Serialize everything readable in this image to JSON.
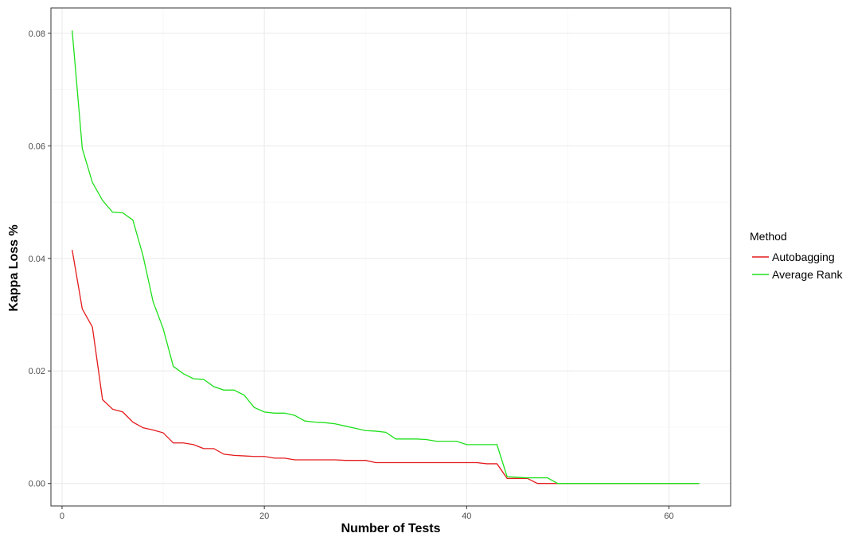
{
  "chart_data": {
    "type": "line",
    "title": "",
    "xlabel": "Number of Tests",
    "ylabel": "Kappa Loss %",
    "xlim": [
      -1.1,
      66.1
    ],
    "ylim": [
      -0.004,
      0.0845
    ],
    "x_ticks": [
      0,
      20,
      40,
      60
    ],
    "x_tick_labels": [
      "0",
      "20",
      "40",
      "60"
    ],
    "y_ticks": [
      0.0,
      0.02,
      0.04,
      0.06,
      0.08
    ],
    "y_tick_labels": [
      "0.00",
      "0.02",
      "0.04",
      "0.06",
      "0.08"
    ],
    "grid": true,
    "legend": {
      "title": "Method",
      "position": "right"
    },
    "series": [
      {
        "name": "Autobagging",
        "color": "#e41a1c",
        "x": [
          1,
          2,
          3,
          4,
          5,
          6,
          7,
          8,
          9,
          10,
          11,
          12,
          13,
          14,
          15,
          16,
          17,
          18,
          19,
          20,
          21,
          22,
          23,
          24,
          25,
          26,
          27,
          28,
          29,
          30,
          31,
          32,
          33,
          34,
          35,
          36,
          37,
          38,
          39,
          40,
          41,
          42,
          43,
          44,
          45,
          46,
          47,
          48,
          49,
          50,
          51,
          52,
          53,
          54,
          55,
          56,
          57,
          58,
          59,
          60,
          61,
          62,
          63
        ],
        "y": [
          0.0415,
          0.031,
          0.0278,
          0.0149,
          0.0132,
          0.0127,
          0.0109,
          0.0099,
          0.0095,
          0.009,
          0.0072,
          0.0072,
          0.0069,
          0.0062,
          0.0062,
          0.0052,
          0.005,
          0.0049,
          0.0048,
          0.0048,
          0.0045,
          0.0045,
          0.0042,
          0.0042,
          0.0042,
          0.0042,
          0.0042,
          0.0041,
          0.0041,
          0.0041,
          0.0037,
          0.0037,
          0.0037,
          0.0037,
          0.0037,
          0.0037,
          0.0037,
          0.0037,
          0.0037,
          0.0037,
          0.0037,
          0.0035,
          0.0035,
          0.0009,
          0.0009,
          0.0009,
          0.0,
          0.0,
          0.0,
          0.0,
          0.0,
          0.0,
          0.0,
          0.0,
          0.0,
          0.0,
          0.0,
          0.0,
          0.0,
          0.0,
          0.0,
          0.0,
          0.0
        ]
      },
      {
        "name": "Average Rank",
        "color": "#1ee01a",
        "x": [
          1,
          2,
          3,
          4,
          5,
          6,
          7,
          8,
          9,
          10,
          11,
          12,
          13,
          14,
          15,
          16,
          17,
          18,
          19,
          20,
          21,
          22,
          23,
          24,
          25,
          26,
          27,
          28,
          29,
          30,
          31,
          32,
          33,
          34,
          35,
          36,
          37,
          38,
          39,
          40,
          41,
          42,
          43,
          44,
          45,
          46,
          47,
          48,
          49,
          50,
          51,
          52,
          53,
          54,
          55,
          56,
          57,
          58,
          59,
          60,
          61,
          62,
          63
        ],
        "y": [
          0.0805,
          0.0595,
          0.0535,
          0.0503,
          0.0482,
          0.0481,
          0.0468,
          0.0405,
          0.0323,
          0.0275,
          0.0208,
          0.0195,
          0.0186,
          0.0185,
          0.0172,
          0.0166,
          0.0166,
          0.0157,
          0.0135,
          0.0127,
          0.0125,
          0.0125,
          0.0121,
          0.0111,
          0.0109,
          0.0108,
          0.0106,
          0.0102,
          0.0098,
          0.0094,
          0.0093,
          0.0091,
          0.0079,
          0.0079,
          0.0079,
          0.0078,
          0.0075,
          0.0075,
          0.0075,
          0.0069,
          0.0069,
          0.0069,
          0.0069,
          0.0012,
          0.0011,
          0.001,
          0.001,
          0.001,
          0.0,
          0.0,
          0.0,
          0.0,
          0.0,
          0.0,
          0.0,
          0.0,
          0.0,
          0.0,
          0.0,
          0.0,
          0.0,
          0.0,
          0.0
        ]
      }
    ]
  }
}
